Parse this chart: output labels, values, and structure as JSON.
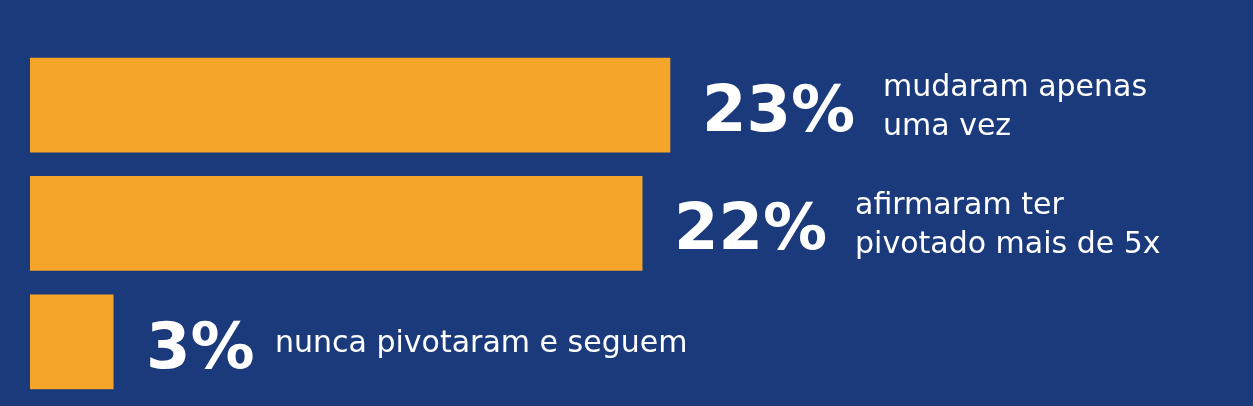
{
  "chart_data": {
    "type": "bar",
    "orientation": "horizontal",
    "categories": [
      "mudaram apenas\numa vez",
      "afirmaram ter\npivotado mais de 5x",
      "nunca pivotaram e seguem"
    ],
    "values": [
      23,
      22,
      3
    ],
    "value_labels": [
      "23%",
      "22%",
      "3%"
    ],
    "color": "#f5a62a"
  }
}
